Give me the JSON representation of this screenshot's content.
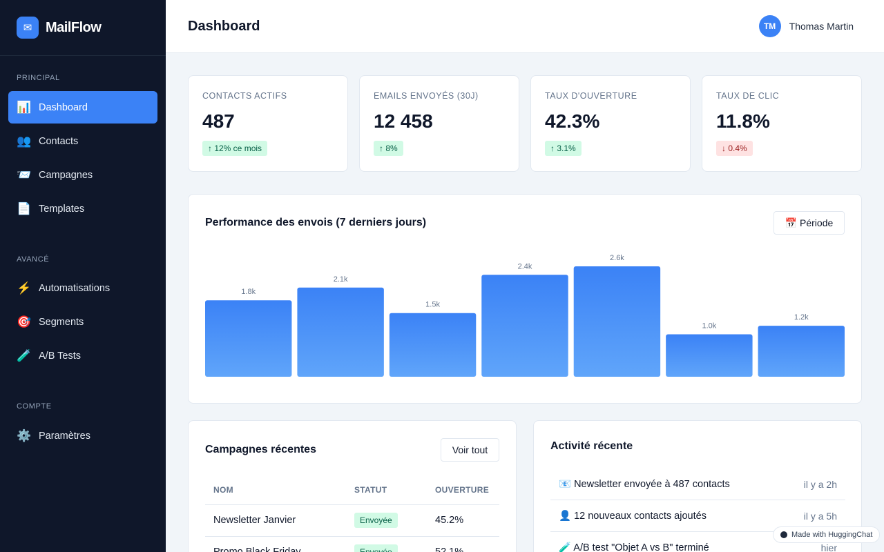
{
  "brand": {
    "logo_icon": "✉",
    "name": "MailFlow"
  },
  "sidebar": {
    "sections": [
      {
        "title": "PRINCIPAL",
        "items": [
          {
            "label": "Dashboard",
            "icon": "📊",
            "active": true
          },
          {
            "label": "Contacts",
            "icon": "👥"
          },
          {
            "label": "Campagnes",
            "icon": "📨"
          },
          {
            "label": "Templates",
            "icon": "📄"
          }
        ]
      },
      {
        "title": "AVANCÉ",
        "items": [
          {
            "label": "Automatisations",
            "icon": "⚡"
          },
          {
            "label": "Segments",
            "icon": "🎯"
          },
          {
            "label": "A/B Tests",
            "icon": "🧪"
          }
        ]
      },
      {
        "title": "COMPTE",
        "items": [
          {
            "label": "Paramètres",
            "icon": "⚙️"
          }
        ]
      }
    ]
  },
  "header": {
    "title": "Dashboard",
    "user_initials": "TM",
    "user_name": "Thomas Martin"
  },
  "stats": [
    {
      "label": "CONTACTS ACTIFS",
      "value": "487",
      "delta": "↑ 12% ce mois",
      "trend": "up"
    },
    {
      "label": "EMAILS ENVOYÉS (30J)",
      "value": "12 458",
      "delta": "↑ 8%",
      "trend": "up"
    },
    {
      "label": "TAUX D'OUVERTURE",
      "value": "42.3%",
      "delta": "↑ 3.1%",
      "trend": "up"
    },
    {
      "label": "TAUX DE CLIC",
      "value": "11.8%",
      "delta": "↓ 0.4%",
      "trend": "down"
    }
  ],
  "chart": {
    "title": "Performance des envois (7 derniers jours)",
    "period_button": "📅 Période"
  },
  "chart_data": {
    "type": "bar",
    "values": [
      1800,
      2100,
      1500,
      2400,
      2600,
      1000,
      1200
    ],
    "data_labels": [
      "1.8k",
      "2.1k",
      "1.5k",
      "2.4k",
      "2.6k",
      "1.0k",
      "1.2k"
    ],
    "color": "#3b82f6"
  },
  "campaigns": {
    "title": "Campagnes récentes",
    "view_all": "Voir tout",
    "columns": [
      "NOM",
      "STATUT",
      "OUVERTURE"
    ],
    "rows": [
      {
        "name": "Newsletter Janvier",
        "status": "Envoyée",
        "open": "45.2%"
      },
      {
        "name": "Promo Black Friday",
        "status": "Envoyée",
        "open": "52.1%"
      }
    ]
  },
  "activity": {
    "title": "Activité récente",
    "items": [
      {
        "text": "📧 Newsletter envoyée à 487 contacts",
        "time": "il y a 2h"
      },
      {
        "text": "👤 12 nouveaux contacts ajoutés",
        "time": "il y a 5h"
      },
      {
        "text": "🧪 A/B test \"Objet A vs B\" terminé",
        "time": "hier"
      }
    ]
  },
  "badge": {
    "label": "Made with HuggingChat"
  },
  "colors": {
    "accent": "#3b82f6",
    "sidebar_bg": "#0f172a"
  }
}
